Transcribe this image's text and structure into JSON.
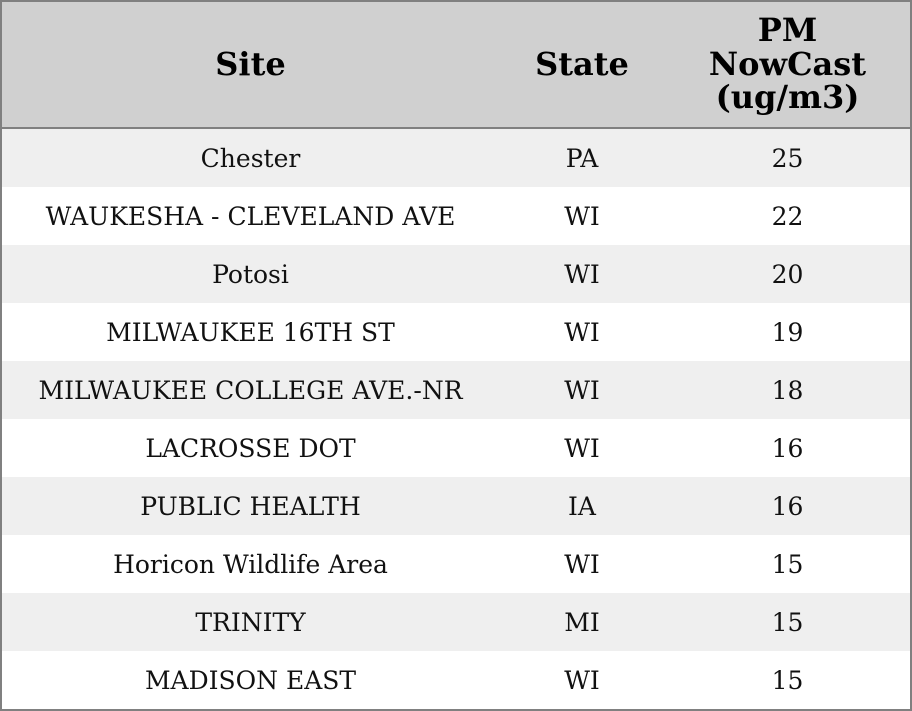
{
  "table": {
    "headers": [
      "Site",
      "State",
      "PM NowCast (ug/m3)"
    ],
    "rows": [
      [
        "Chester",
        "PA",
        25
      ],
      [
        "WAUKESHA - CLEVELAND AVE",
        "WI",
        22
      ],
      [
        "Potosi",
        "WI",
        20
      ],
      [
        "MILWAUKEE 16TH ST",
        "WI",
        19
      ],
      [
        "MILWAUKEE COLLEGE AVE.-NR",
        "WI",
        18
      ],
      [
        "LACROSSE DOT",
        "WI",
        16
      ],
      [
        "PUBLIC HEALTH",
        "IA",
        16
      ],
      [
        "Horicon Wildlife Area",
        "WI",
        15
      ],
      [
        "TRINITY",
        "MI",
        15
      ],
      [
        "MADISON EAST",
        "WI",
        15
      ]
    ]
  }
}
